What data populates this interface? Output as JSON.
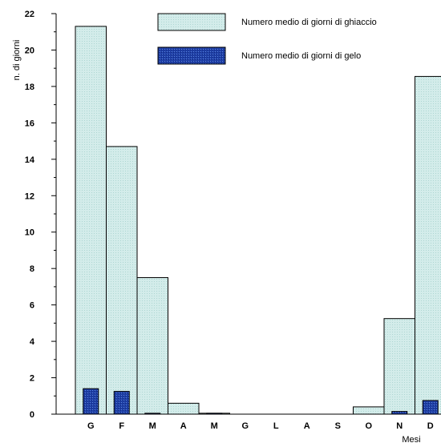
{
  "chart_data": {
    "type": "bar",
    "categories": [
      "G",
      "F",
      "M",
      "A",
      "M",
      "G",
      "L",
      "A",
      "S",
      "O",
      "N",
      "D"
    ],
    "series": [
      {
        "name": "Numero medio di giorni di ghiaccio",
        "color": "#d3ecea",
        "values": [
          21.3,
          14.7,
          7.5,
          0.6,
          0.05,
          0,
          0,
          0,
          0,
          0.4,
          5.25,
          18.55
        ]
      },
      {
        "name": "Numero medio di giorni di gelo",
        "color": "#1f3fa6",
        "values": [
          1.4,
          1.25,
          0.05,
          0,
          0.05,
          0,
          0,
          0,
          0,
          0,
          0.15,
          0.75
        ]
      }
    ],
    "xlabel": "Mesi",
    "ylabel": "n. di giorni",
    "ylim": [
      0,
      22
    ],
    "yticks": [
      0,
      2,
      4,
      6,
      8,
      10,
      12,
      14,
      16,
      18,
      20,
      22
    ],
    "legend_position": "top-right",
    "grid": false
  }
}
